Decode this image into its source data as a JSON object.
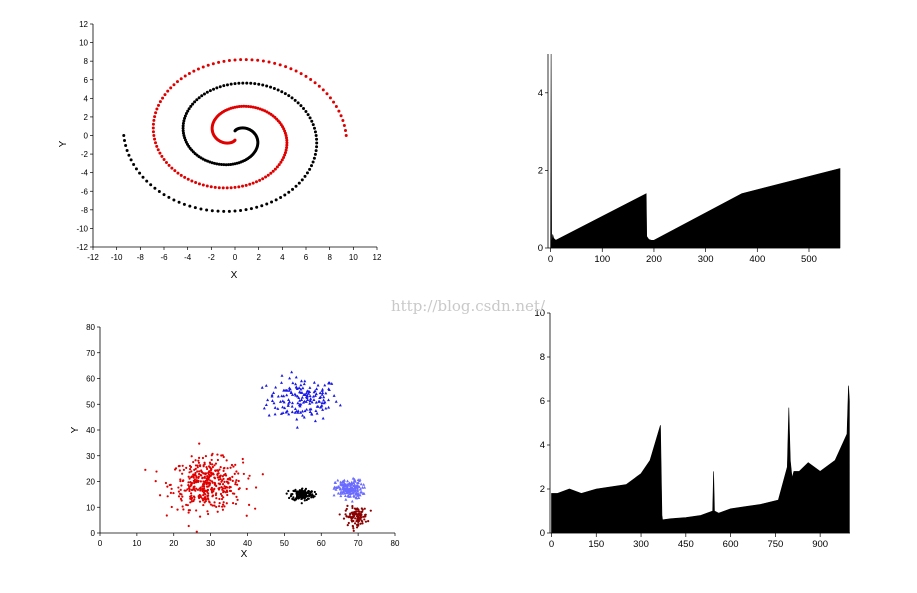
{
  "watermark": "http://blog.csdn.net/",
  "chart_data": [
    {
      "type": "scatter",
      "title": "",
      "xlabel": "X",
      "ylabel": "Y",
      "xlim": [
        -12,
        12
      ],
      "ylim": [
        -12,
        12
      ],
      "xticks": [
        "-12",
        "-10",
        "-8",
        "-6",
        "-4",
        "-2",
        "0",
        "2",
        "4",
        "6",
        "8",
        "10",
        "12"
      ],
      "yticks": [
        "12",
        "10",
        "8",
        "6",
        "4",
        "2",
        "0",
        "-2",
        "-4",
        "-6",
        "-8",
        "-10",
        "-12"
      ],
      "spiral": {
        "turns": 1.75,
        "start_radius": 0.5,
        "end_radius": 9.4,
        "points_per_arm": 190
      },
      "series": [
        {
          "color": "#e00000",
          "description": "spiral arm (red)"
        },
        {
          "color": "#000000",
          "description": "spiral arm (black)"
        }
      ]
    },
    {
      "type": "area",
      "title": "",
      "xlim": [
        -5,
        560
      ],
      "ylim": [
        0,
        5
      ],
      "xticks": [
        "0",
        "100",
        "200",
        "300",
        "400",
        "500"
      ],
      "yticks": [
        "4",
        "2",
        "0"
      ],
      "x": [
        0,
        1,
        2,
        4,
        6,
        10,
        185,
        186,
        190,
        195,
        200,
        370,
        560
      ],
      "y": [
        0,
        5,
        0,
        0.35,
        0.25,
        0.2,
        1.4,
        0.3,
        0.22,
        0.2,
        0.2,
        1.4,
        2.05
      ],
      "color": "#000000"
    },
    {
      "type": "scatter",
      "title": "",
      "xlabel": "X",
      "ylabel": "Y",
      "xlim": [
        0,
        80
      ],
      "ylim": [
        0,
        80
      ],
      "xticks": [
        "0",
        "10",
        "20",
        "30",
        "40",
        "50",
        "60",
        "70",
        "80"
      ],
      "yticks": [
        "80",
        "70",
        "60",
        "50",
        "40",
        "30",
        "20",
        "10",
        "0"
      ],
      "clusters": [
        {
          "color": "#1a1ae6",
          "center": [
            55,
            52
          ],
          "spread": [
            8,
            7
          ],
          "count": 170,
          "marker": "triangle"
        },
        {
          "color": "#e00000",
          "center": [
            29,
            19
          ],
          "spread": [
            8,
            8
          ],
          "count": 420,
          "marker": "dot"
        },
        {
          "color": "#000000",
          "center": [
            55,
            15
          ],
          "spread": [
            2.5,
            2
          ],
          "count": 160,
          "marker": "dot"
        },
        {
          "color": "#6b6bff",
          "center": [
            67.5,
            17
          ],
          "spread": [
            3,
            3
          ],
          "count": 180,
          "marker": "triangle"
        },
        {
          "color": "#8b0000",
          "center": [
            69.5,
            6.5
          ],
          "spread": [
            2.5,
            3
          ],
          "count": 110,
          "marker": "dot"
        }
      ]
    },
    {
      "type": "area",
      "title": "",
      "xlim": [
        -5,
        1000
      ],
      "ylim": [
        0,
        10
      ],
      "xticks": [
        "0",
        "150",
        "300",
        "450",
        "600",
        "750",
        "900"
      ],
      "yticks": [
        "10",
        "8",
        "6",
        "4",
        "2",
        "0"
      ],
      "x": [
        0,
        20,
        60,
        100,
        150,
        200,
        250,
        300,
        330,
        365,
        370,
        372,
        400,
        450,
        500,
        540,
        543,
        546,
        560,
        600,
        650,
        700,
        760,
        790,
        795,
        800,
        806,
        812,
        830,
        860,
        900,
        950,
        990,
        995,
        998
      ],
      "y": [
        1.8,
        1.8,
        2.0,
        1.8,
        2.0,
        2.1,
        2.2,
        2.7,
        3.3,
        4.9,
        0.8,
        0.6,
        0.65,
        0.7,
        0.8,
        1.0,
        2.8,
        1.0,
        0.9,
        1.1,
        1.2,
        1.3,
        1.5,
        3.0,
        5.7,
        3.3,
        2.5,
        2.8,
        2.8,
        3.2,
        2.8,
        3.3,
        4.5,
        6.7,
        6.0
      ],
      "color": "#000000"
    }
  ]
}
